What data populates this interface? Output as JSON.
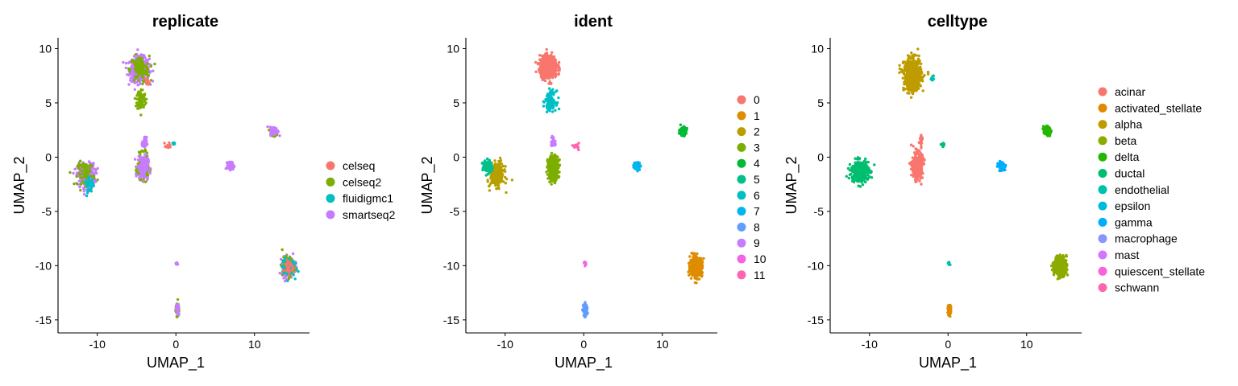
{
  "chart_data": [
    {
      "type": "scatter",
      "title": "replicate",
      "xlabel": "UMAP_1",
      "ylabel": "UMAP_2",
      "xlim": [
        -15,
        17
      ],
      "ylim": [
        -16.2,
        11
      ],
      "xticks": [
        -10,
        0,
        10
      ],
      "yticks": [
        10,
        5,
        0,
        -5,
        -10,
        -15
      ],
      "legend_position": "right",
      "series": [
        {
          "name": "celseq",
          "color": "#F8766D"
        },
        {
          "name": "celseq2",
          "color": "#7CAE00"
        },
        {
          "name": "fluidigmc1",
          "color": "#00BFC4"
        },
        {
          "name": "smartseq2",
          "color": "#C77CFF"
        }
      ]
    },
    {
      "type": "scatter",
      "title": "ident",
      "xlabel": "UMAP_1",
      "ylabel": "UMAP_2",
      "xlim": [
        -15,
        17
      ],
      "ylim": [
        -16.2,
        11
      ],
      "xticks": [
        -10,
        0,
        10
      ],
      "yticks": [
        10,
        5,
        0,
        -5,
        -10,
        -15
      ],
      "legend_position": "right",
      "series": [
        {
          "name": "0",
          "color": "#F8766D"
        },
        {
          "name": "1",
          "color": "#DE8C00"
        },
        {
          "name": "2",
          "color": "#B79F00"
        },
        {
          "name": "3",
          "color": "#7CAE00"
        },
        {
          "name": "4",
          "color": "#00BA38"
        },
        {
          "name": "5",
          "color": "#00C08B"
        },
        {
          "name": "6",
          "color": "#00BFC4"
        },
        {
          "name": "7",
          "color": "#00B4F0"
        },
        {
          "name": "8",
          "color": "#619CFF"
        },
        {
          "name": "9",
          "color": "#C77CFF"
        },
        {
          "name": "10",
          "color": "#F564E3"
        },
        {
          "name": "11",
          "color": "#FF64B0"
        }
      ]
    },
    {
      "type": "scatter",
      "title": "celltype",
      "xlabel": "UMAP_1",
      "ylabel": "UMAP_2",
      "xlim": [
        -15,
        17
      ],
      "ylim": [
        -16.2,
        11
      ],
      "xticks": [
        -10,
        0,
        10
      ],
      "yticks": [
        10,
        5,
        0,
        -5,
        -10,
        -15
      ],
      "legend_position": "right",
      "series": [
        {
          "name": "acinar",
          "color": "#F8766D"
        },
        {
          "name": "activated_stellate",
          "color": "#E18A00"
        },
        {
          "name": "alpha",
          "color": "#BE9C00"
        },
        {
          "name": "beta",
          "color": "#8CAB00"
        },
        {
          "name": "delta",
          "color": "#24B700"
        },
        {
          "name": "ductal",
          "color": "#00BE70"
        },
        {
          "name": "endothelial",
          "color": "#00C1AB"
        },
        {
          "name": "epsilon",
          "color": "#00BBDA"
        },
        {
          "name": "gamma",
          "color": "#00ACFC"
        },
        {
          "name": "macrophage",
          "color": "#8B93FF"
        },
        {
          "name": "mast",
          "color": "#D575FE"
        },
        {
          "name": "quiescent_stellate",
          "color": "#F962DD"
        },
        {
          "name": "schwann",
          "color": "#FF65AC"
        }
      ]
    }
  ]
}
